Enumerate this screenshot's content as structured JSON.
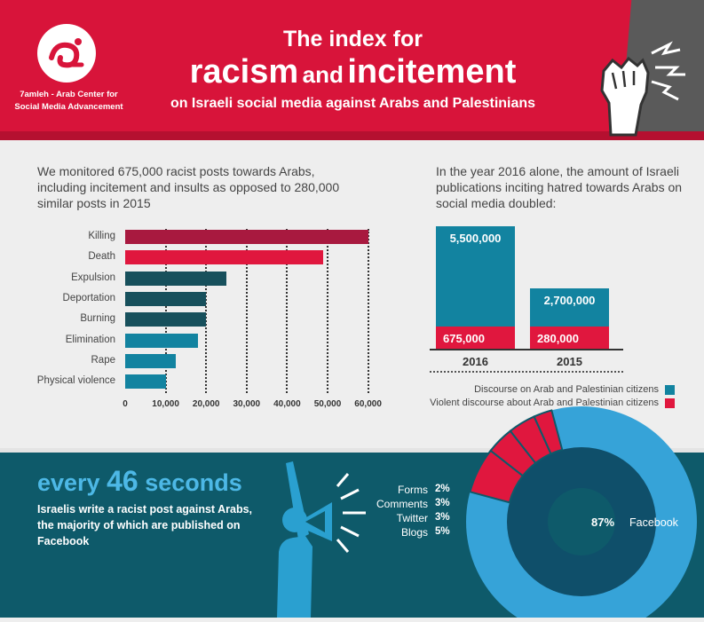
{
  "header": {
    "org_name": "7amleh - Arab Center for Social Media Advancement",
    "title_line1": "The index for",
    "title_word1": "racism",
    "title_and": "and",
    "title_word2": "incitement",
    "title_line3": "on Israeli social media against Arabs and Palestinians"
  },
  "left_panel": {
    "intro": "We monitored 675,000 racist posts towards Arabs, including incitement and insults as opposed to 280,000 similar posts in 2015"
  },
  "right_panel": {
    "intro": "In the year 2016 alone, the amount of Israeli publications inciting hatred towards Arabs on social media doubled:"
  },
  "footer": {
    "every_prefix": "every",
    "every_number": "46",
    "every_suffix": "seconds",
    "description": "Israelis write a racist post against Arabs, the majority of which are published on Facebook"
  },
  "colors": {
    "header_red": "#d8143a",
    "dark_red": "#a8193f",
    "dark_teal": "#17505c",
    "teal": "#1283a0",
    "light_blue": "#36a3d8",
    "navy": "#0f4f6a"
  },
  "chart_data": [
    {
      "type": "bar",
      "orientation": "horizontal",
      "categories": [
        "Killing",
        "Death",
        "Expulsion",
        "Deportation",
        "Burning",
        "Elimination",
        "Rape",
        "Physical violence"
      ],
      "values": [
        60000,
        49000,
        25000,
        20000,
        20000,
        18000,
        12500,
        10000
      ],
      "bar_colors": [
        "#a8193f",
        "#e0173e",
        "#17505c",
        "#17505c",
        "#17505c",
        "#1283a0",
        "#1283a0",
        "#1283a0"
      ],
      "xlim": [
        0,
        62000
      ],
      "xticks": [
        "0",
        "10,000",
        "20,000",
        "30,000",
        "40,000",
        "50,000",
        "60,000"
      ],
      "grid": "vertical dotted"
    },
    {
      "type": "bar",
      "stacked": true,
      "categories": [
        "2016",
        "2015"
      ],
      "series": [
        {
          "name": "Discourse on Arab and Palestinian citizens",
          "color": "#1283a0",
          "values": [
            5500000,
            2700000
          ],
          "labels": [
            "5,500,000",
            "2,700,000"
          ]
        },
        {
          "name": "Violent discourse about Arab and Palestinian citizens",
          "color": "#e0173e",
          "values": [
            675000,
            280000
          ],
          "labels": [
            "675,000",
            "280,000"
          ]
        }
      ],
      "legend": "bottom-right"
    },
    {
      "type": "pie",
      "donut": true,
      "slices": [
        {
          "name": "Facebook",
          "value": 87,
          "label": "87%",
          "color": "#36a3d8"
        },
        {
          "name": "Blogs",
          "value": 5,
          "label": "5%",
          "color": "#e0173e"
        },
        {
          "name": "Twitter",
          "value": 3,
          "label": "3%",
          "color": "#e0173e"
        },
        {
          "name": "Comments",
          "value": 3,
          "label": "3%",
          "color": "#e0173e"
        },
        {
          "name": "Forms",
          "value": 2,
          "label": "2%",
          "color": "#e0173e"
        }
      ]
    }
  ]
}
